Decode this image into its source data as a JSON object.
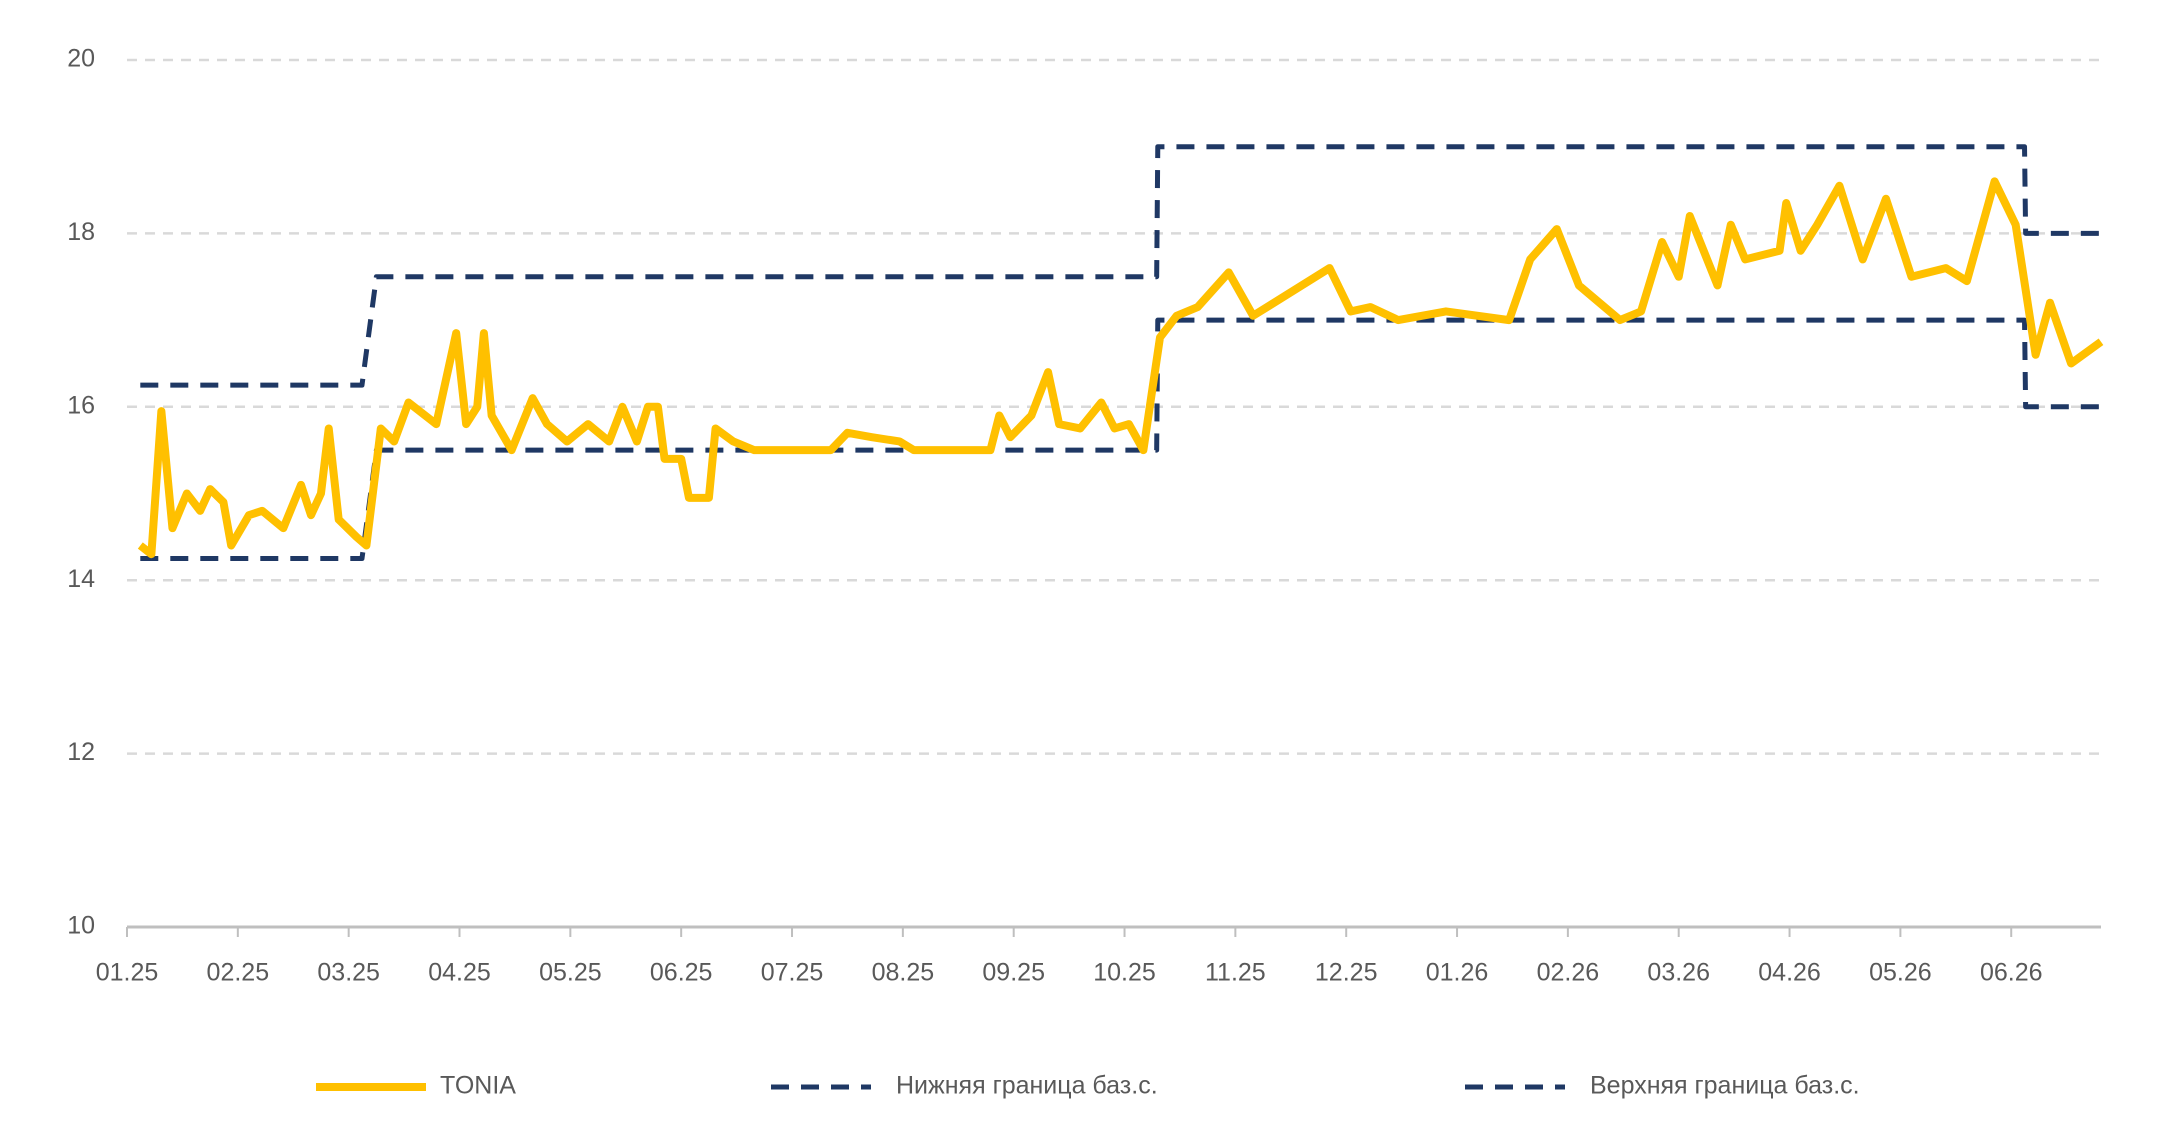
{
  "chart_data": {
    "type": "line",
    "ylim": [
      10,
      20
    ],
    "yticks": [
      10,
      12,
      14,
      16,
      18,
      20
    ],
    "grid": true,
    "xlim": [
      0,
      17.81
    ],
    "xticks": [
      {
        "value": 0,
        "label": "01.25"
      },
      {
        "value": 1,
        "label": "02.25"
      },
      {
        "value": 2,
        "label": "03.25"
      },
      {
        "value": 3,
        "label": "04.25"
      },
      {
        "value": 4,
        "label": "05.25"
      },
      {
        "value": 5,
        "label": "06.25"
      },
      {
        "value": 6,
        "label": "07.25"
      },
      {
        "value": 7,
        "label": "08.25"
      },
      {
        "value": 8,
        "label": "09.25"
      },
      {
        "value": 9,
        "label": "10.25"
      },
      {
        "value": 10,
        "label": "11.25"
      },
      {
        "value": 11,
        "label": "12.25"
      },
      {
        "value": 12,
        "label": "01.26"
      },
      {
        "value": 13,
        "label": "02.26"
      },
      {
        "value": 14,
        "label": "03.26"
      },
      {
        "value": 15,
        "label": "04.26"
      },
      {
        "value": 16,
        "label": "05.26"
      },
      {
        "value": 17,
        "label": "06.26"
      }
    ],
    "legend": "bottom",
    "series": [
      {
        "name": "TONIA",
        "color": "#ffc000",
        "dashed": false,
        "x": [
          0.12,
          0.22,
          0.31,
          0.41,
          0.54,
          0.66,
          0.75,
          0.87,
          0.94,
          1.1,
          1.22,
          1.41,
          1.57,
          1.66,
          1.75,
          1.82,
          1.91,
          2.07,
          2.16,
          2.29,
          2.41,
          2.54,
          2.79,
          2.97,
          3.06,
          3.16,
          3.22,
          3.29,
          3.47,
          3.66,
          3.79,
          3.97,
          4.16,
          4.35,
          4.47,
          4.6,
          4.7,
          4.79,
          4.85,
          5.0,
          5.07,
          5.25,
          5.31,
          5.47,
          5.66,
          6.35,
          6.5,
          6.72,
          6.97,
          7.1,
          7.79,
          7.87,
          7.97,
          8.16,
          8.31,
          8.41,
          8.6,
          8.79,
          8.91,
          9.04,
          9.17,
          9.32,
          9.47,
          9.66,
          9.94,
          10.16,
          10.85,
          11.04,
          11.22,
          11.47,
          11.9,
          12.47,
          12.66,
          12.9,
          13.1,
          13.47,
          13.66,
          13.85,
          14.0,
          14.1,
          14.35,
          14.47,
          14.6,
          14.91,
          14.97,
          15.1,
          15.25,
          15.45,
          15.66,
          15.87,
          16.1,
          16.41,
          16.6,
          16.85,
          17.04,
          17.22,
          17.35,
          17.54,
          17.81
        ],
        "values": [
          14.4,
          14.3,
          15.95,
          14.6,
          15.0,
          14.8,
          15.05,
          14.9,
          14.4,
          14.75,
          14.8,
          14.6,
          15.1,
          14.75,
          15.0,
          15.75,
          14.7,
          14.5,
          14.4,
          15.75,
          15.6,
          16.05,
          15.8,
          16.85,
          15.8,
          16.0,
          16.85,
          15.9,
          15.5,
          16.1,
          15.8,
          15.6,
          15.8,
          15.6,
          16.0,
          15.6,
          16.0,
          16.0,
          15.4,
          15.4,
          14.95,
          14.95,
          15.75,
          15.6,
          15.5,
          15.5,
          15.7,
          15.65,
          15.6,
          15.5,
          15.5,
          15.9,
          15.65,
          15.9,
          16.4,
          15.8,
          15.75,
          16.05,
          15.75,
          15.8,
          15.5,
          16.8,
          17.05,
          17.15,
          17.55,
          17.05,
          17.6,
          17.1,
          17.15,
          17.0,
          17.1,
          17.0,
          17.7,
          18.05,
          17.4,
          17.0,
          17.1,
          17.9,
          17.5,
          18.2,
          17.4,
          18.1,
          17.7,
          17.8,
          18.35,
          17.8,
          18.1,
          18.55,
          17.7,
          18.4,
          17.5,
          17.6,
          17.45,
          18.6,
          18.1,
          16.6,
          17.2,
          16.5,
          16.75
        ]
      },
      {
        "name": "Нижняя граница баз.с.",
        "color": "#1f3864",
        "dashed": true,
        "x": [
          0.12,
          2.12,
          2.25,
          9.29,
          9.3,
          17.12,
          17.13,
          17.81
        ],
        "values": [
          14.25,
          14.25,
          15.5,
          15.5,
          17,
          17,
          16,
          16
        ]
      },
      {
        "name": "Верхняя граница баз.с.",
        "color": "#1f3864",
        "dashed": true,
        "x": [
          0.12,
          2.12,
          2.25,
          9.29,
          9.3,
          17.12,
          17.13,
          17.81
        ],
        "values": [
          16.25,
          16.25,
          17.5,
          17.5,
          19,
          19,
          18,
          18
        ]
      }
    ]
  }
}
